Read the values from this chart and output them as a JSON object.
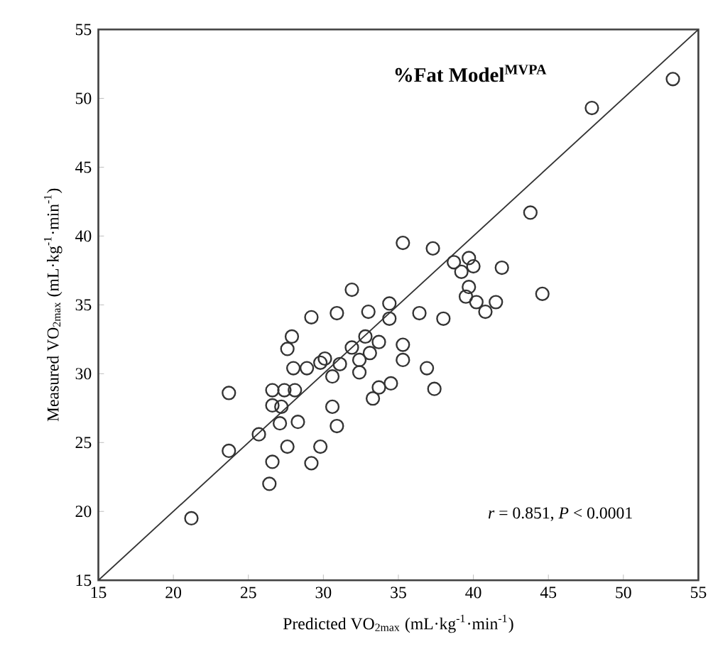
{
  "chart_data": {
    "type": "scatter",
    "title": "%Fat Model$^{MVPA}$",
    "xlabel": "Predicted VO$_{2max}$ (mL·kg$^{-1}$·min$^{-1}$)",
    "ylabel": "Measured VO$_{2max}$ (mL·kg$^{-1}$·min$^{-1}$)",
    "xlim": [
      15,
      55
    ],
    "ylim": [
      15,
      55
    ],
    "xticks": [
      15,
      20,
      25,
      30,
      35,
      40,
      45,
      50,
      55
    ],
    "yticks": [
      15,
      20,
      25,
      30,
      35,
      40,
      45,
      50,
      55
    ],
    "annotations": [
      "*r* = 0.851, *P* < 0.0001"
    ],
    "series": [
      {
        "marker": "circle",
        "color": "#333333",
        "x": [
          21.2,
          23.7,
          23.7,
          25.7,
          26.4,
          26.6,
          26.6,
          26.6,
          27.1,
          27.2,
          27.4,
          27.6,
          27.9,
          27.6,
          28.1,
          28.0,
          28.3,
          28.9,
          29.2,
          29.2,
          29.8,
          30.6,
          30.1,
          29.8,
          30.6,
          30.9,
          31.1,
          30.9,
          31.9,
          32.4,
          32.4,
          32.8,
          33.0,
          33.1,
          33.7,
          33.3,
          33.7,
          34.5,
          34.4,
          35.3,
          35.3,
          35.3,
          31.9,
          34.4,
          53.3,
          47.9,
          43.8,
          37.3,
          38.7,
          39.7,
          40.0,
          39.2,
          41.9,
          39.7,
          39.5,
          40.2,
          40.8,
          41.5,
          44.6,
          36.4,
          38.0,
          36.9,
          37.4
        ],
        "values": [
          19.5,
          24.4,
          28.6,
          25.6,
          22.0,
          23.6,
          28.8,
          27.7,
          26.4,
          27.6,
          28.8,
          31.8,
          32.7,
          24.7,
          28.8,
          30.4,
          26.5,
          30.4,
          34.1,
          23.5,
          24.7,
          27.6,
          31.1,
          30.8,
          29.8,
          26.2,
          30.7,
          34.4,
          31.9,
          30.1,
          31.0,
          32.7,
          34.5,
          31.5,
          32.3,
          28.2,
          29.0,
          29.3,
          34.0,
          32.1,
          31.0,
          39.5,
          36.1,
          35.1,
          51.4,
          49.3,
          41.7,
          39.1,
          38.1,
          38.4,
          37.8,
          37.4,
          37.7,
          36.3,
          35.6,
          35.2,
          34.5,
          35.2,
          35.8,
          34.4,
          34.0,
          30.4,
          28.9
        ]
      },
      {
        "type": "line",
        "marker": "none",
        "color": "#333333",
        "x": [
          15,
          55
        ],
        "values": [
          15,
          55
        ]
      }
    ]
  }
}
